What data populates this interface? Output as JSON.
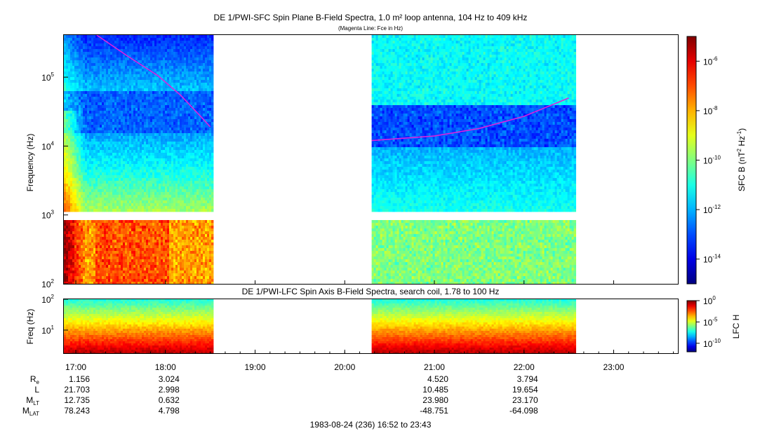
{
  "chart_data": [
    {
      "type": "heatmap",
      "title": "DE 1/PWI-SFC  Spin Plane B-Field Spectra, 1.0 m² loop antenna, 104 Hz to 409 kHz",
      "subtitle": "(Magenta Line: Fce in Hz)",
      "ylabel": "Frequency (Hz)",
      "yscale": "log",
      "ylim": [
        100,
        409000
      ],
      "yticks": [
        {
          "value": 100,
          "label": "10",
          "exp": "2"
        },
        {
          "value": 1000,
          "label": "10",
          "exp": "3"
        },
        {
          "value": 10000,
          "label": "10",
          "exp": "4"
        },
        {
          "value": 100000,
          "label": "10",
          "exp": "5"
        }
      ],
      "colorbar": {
        "label": "SFC B (nT",
        "label_exp1": "2",
        "label_mid": " Hz",
        "label_exp2": "-1",
        "label_end": ")",
        "scale": "log",
        "range": [
          1e-15,
          1e-05
        ],
        "ticks": [
          {
            "value": 1e-06,
            "label": "10",
            "exp": "-6"
          },
          {
            "value": 1e-08,
            "label": "10",
            "exp": "-8"
          },
          {
            "value": 1e-10,
            "label": "10",
            "exp": "-10"
          },
          {
            "value": 1e-12,
            "label": "10",
            "exp": "-12"
          },
          {
            "value": 1e-14,
            "label": "10",
            "exp": "-14"
          }
        ]
      },
      "data_segments": [
        {
          "start": "16:52",
          "end": "18:32"
        },
        {
          "start": "20:18",
          "end": "22:34"
        }
      ],
      "fce_line": [
        {
          "time": "17:14",
          "freq": 409000
        },
        {
          "time": "17:35",
          "freq": 200000
        },
        {
          "time": "17:55",
          "freq": 105000
        },
        {
          "time": "18:10",
          "freq": 55000
        },
        {
          "time": "18:25",
          "freq": 25000
        },
        {
          "time": "18:30",
          "freq": 19000
        },
        {
          "time": "20:18",
          "freq": 12000
        },
        {
          "time": "21:00",
          "freq": 14000
        },
        {
          "time": "21:30",
          "freq": 18000
        },
        {
          "time": "22:00",
          "freq": 27000
        },
        {
          "time": "22:30",
          "freq": 50000
        }
      ]
    },
    {
      "type": "heatmap",
      "title": "DE 1/PWI-LFC  Spin Axis B-Field Spectra, search coil, 1.78 to 100 Hz",
      "ylabel": "Freq (Hz)",
      "yscale": "log",
      "ylim": [
        1.78,
        100
      ],
      "yticks": [
        {
          "value": 10,
          "label": "10",
          "exp": "1"
        },
        {
          "value": 100,
          "label": "10",
          "exp": "2"
        }
      ],
      "colorbar": {
        "label": "LFC H",
        "scale": "log",
        "range": [
          1e-12,
          1
        ],
        "ticks": [
          {
            "value": 1,
            "label": "10",
            "exp": "0"
          },
          {
            "value": 1e-05,
            "label": "10",
            "exp": "-5"
          },
          {
            "value": 1e-10,
            "label": "10",
            "exp": "-10"
          }
        ]
      },
      "data_segments": [
        {
          "start": "16:52",
          "end": "18:32"
        },
        {
          "start": "20:18",
          "end": "22:34"
        }
      ]
    }
  ],
  "time_axis": {
    "range": [
      "16:52",
      "23:43"
    ],
    "ticks": [
      "17:00",
      "18:00",
      "19:00",
      "20:00",
      "21:00",
      "22:00",
      "23:00"
    ]
  },
  "ephemeris": [
    {
      "name": "R",
      "sub": "e",
      "values": [
        "1.156",
        "3.024",
        "",
        "",
        "4.520",
        "3.794",
        ""
      ]
    },
    {
      "name": "L",
      "sub": "",
      "values": [
        "21.703",
        "2.998",
        "",
        "",
        "10.485",
        "19.654",
        ""
      ]
    },
    {
      "name": "M",
      "sub": "LT",
      "values": [
        "12.735",
        "0.632",
        "",
        "",
        "23.980",
        "23.170",
        ""
      ]
    },
    {
      "name": "M",
      "sub": "LAT",
      "values": [
        "78.243",
        "4.798",
        "",
        "",
        "-48.751",
        "-64.098",
        ""
      ]
    }
  ],
  "footer": "1983-08-24 (236) 16:52 to 23:43",
  "colors": {
    "fce_line": "#dd22dd",
    "background": "#ffffff"
  }
}
